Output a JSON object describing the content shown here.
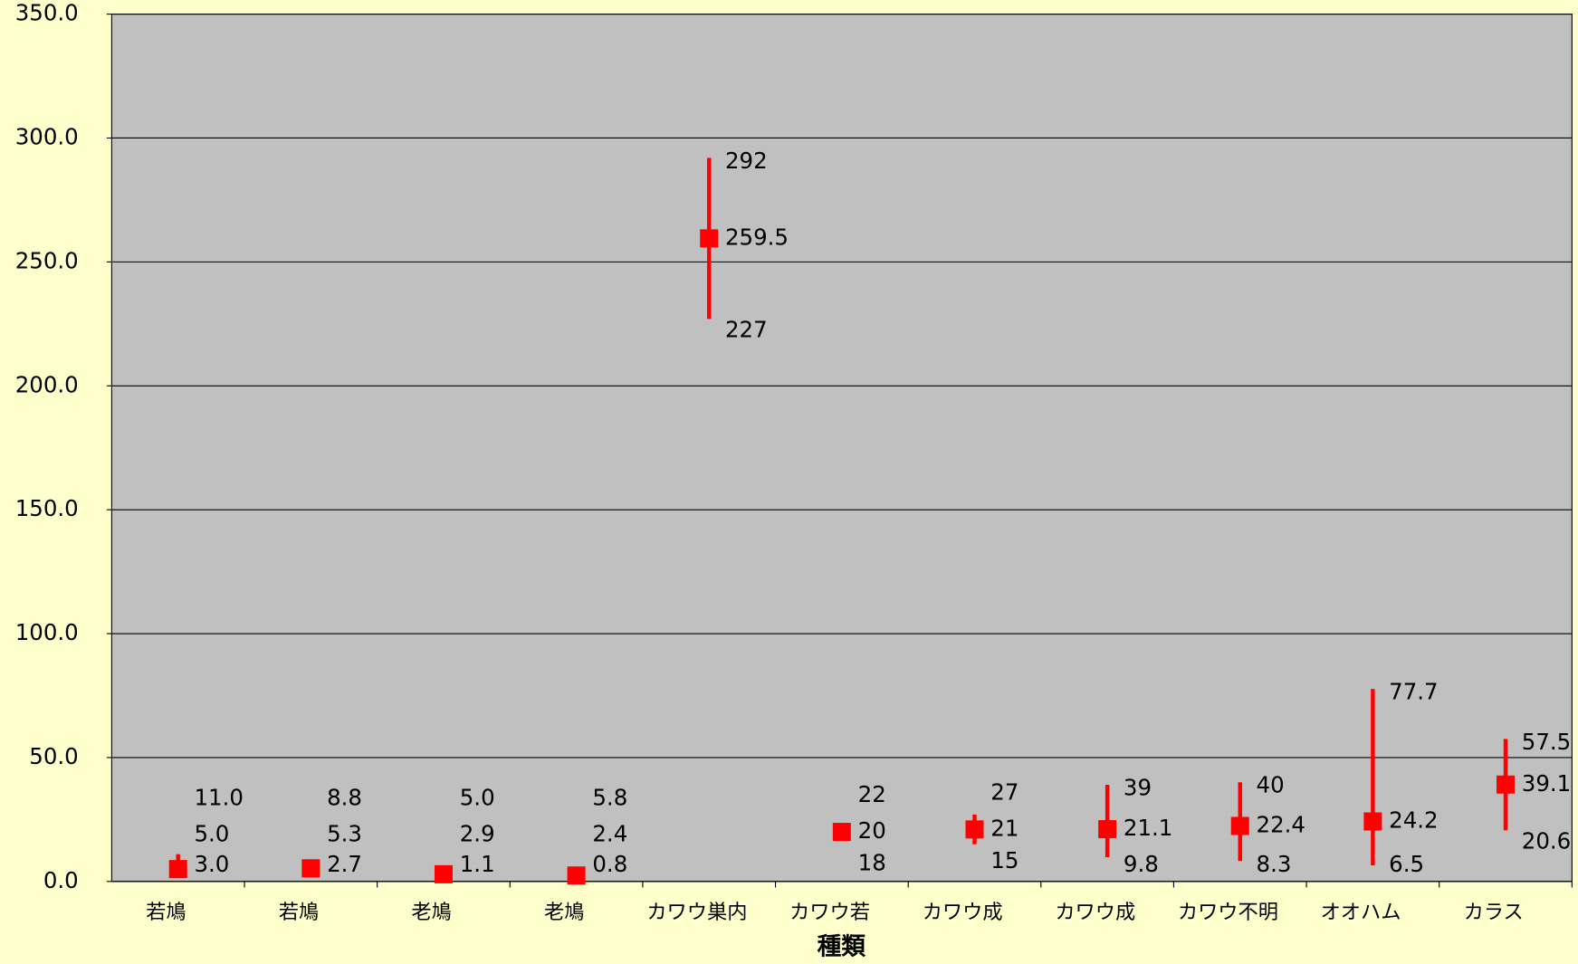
{
  "chart_data": {
    "type": "hilo",
    "x_label": "種類",
    "categories": [
      "若鳩",
      "若鳩",
      "老鳩",
      "老鳩",
      "カワウ巣内",
      "カワウ若",
      "カワウ成",
      "カワウ成",
      "カワウ不明",
      "オオハム",
      "カラス"
    ],
    "series": [
      {
        "color": "#ff0000",
        "label_color": "#0000ff",
        "values": [
          5.0,
          5.3,
          2.9,
          2.4,
          259.5,
          20,
          21,
          21.1,
          22.4,
          24.2,
          39.1
        ],
        "value_labels": [
          "5.0",
          "5.3",
          "2.9",
          "2.4",
          "259.5",
          "20",
          "21",
          "21.1",
          "22.4",
          "24.2",
          "39.1"
        ]
      },
      {
        "color": "#ff0000",
        "label_color": "#000000",
        "values": [
          11.0,
          8.8,
          5.0,
          5.8,
          292,
          22,
          27,
          39,
          40,
          77.7,
          57.5
        ],
        "value_labels": [
          "11.0",
          "8.8",
          "5.0",
          "5.8",
          "292",
          "22",
          "27",
          "39",
          "40",
          "77.7",
          "57.5"
        ]
      },
      {
        "color": "#ff0000",
        "label_color": "#000000",
        "values": [
          3.0,
          2.7,
          1.1,
          0.8,
          227,
          18,
          15,
          9.8,
          8.3,
          6.5,
          20.6
        ],
        "value_labels": [
          "3.0",
          "2.7",
          "1.1",
          "0.8",
          "227",
          "18",
          "15",
          "9.8",
          "8.3",
          "6.5",
          "20.6"
        ]
      }
    ],
    "ylim": [
      0,
      350
    ],
    "yticks": [
      {
        "value": 0,
        "label": "0.0"
      },
      {
        "value": 50,
        "label": "50.0"
      },
      {
        "value": 100,
        "label": "100.0"
      },
      {
        "value": 150,
        "label": "150.0"
      },
      {
        "value": 200,
        "label": "200.0"
      },
      {
        "value": 250,
        "label": "250.0"
      },
      {
        "value": 300,
        "label": "300.0"
      },
      {
        "value": 350,
        "label": "350.0"
      }
    ],
    "grid": true,
    "plot_color": "#c0c0c0",
    "background": "#ffffcc"
  }
}
